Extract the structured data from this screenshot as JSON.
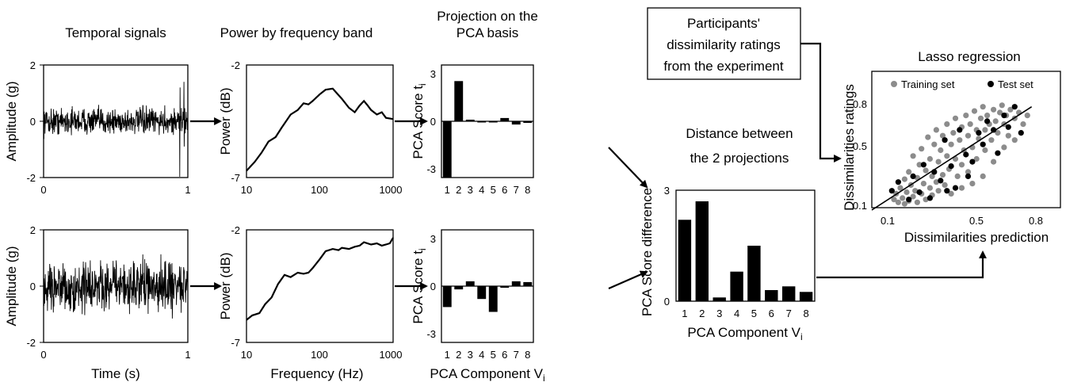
{
  "titles": {
    "temporal": "Temporal signals",
    "power": "Power by frequency band",
    "projection_1": "Projection on the",
    "projection_2": "PCA basis",
    "distance_1": "Distance between",
    "distance_2": "the 2 projections",
    "lasso": "Lasso regression",
    "ratings_box_1": "Participants'",
    "ratings_box_2": "dissimilarity ratings",
    "ratings_box_3": "from the experiment"
  },
  "axes": {
    "amplitude": "Amplitude (g)",
    "power": "Power (dB)",
    "pca_score": "PCA Score t",
    "pca_score_sub": "i",
    "pca_component": "PCA Component V",
    "pca_component_sub": "i",
    "time": "Time (s)",
    "frequency": "Frequency (Hz)",
    "score_diff": "PCA Score difference",
    "diss_ratings": "Dissimilarities ratings",
    "diss_prediction": "Dissimilarities prediction"
  },
  "ticks": {
    "amp": [
      "2",
      "0",
      "-2"
    ],
    "time": [
      "0",
      "1"
    ],
    "power": [
      "-2",
      "-7"
    ],
    "freq": [
      "10",
      "100",
      "1000"
    ],
    "pca": [
      "3",
      "0",
      "-3"
    ],
    "comp": [
      "1",
      "2",
      "3",
      "4",
      "5",
      "6",
      "7",
      "8"
    ],
    "diff": [
      "3",
      "0"
    ],
    "lasso_y": [
      "0.8",
      "0.5",
      "0.1"
    ],
    "lasso_x": [
      "0.1",
      "0.5",
      "0.8"
    ]
  },
  "legend": {
    "training": "Training set",
    "test": "Test set"
  },
  "colors": {
    "training": "#8c8c8c",
    "test": "#000000"
  },
  "chart_data": [
    {
      "type": "line",
      "xlim": [
        0,
        1
      ],
      "ylim": [
        -2,
        2
      ],
      "note_series": "random vibration signal, sample 1"
    },
    {
      "type": "line",
      "xscale": "log",
      "xlim": [
        10,
        1000
      ],
      "ylim": [
        -7,
        -2
      ],
      "x": [
        10,
        13,
        16,
        20,
        25,
        30,
        40,
        50,
        60,
        70,
        80,
        100,
        120,
        150,
        200,
        250,
        300,
        350,
        400,
        450,
        500,
        600,
        700,
        800,
        1000
      ],
      "y": [
        -6.7,
        -6.3,
        -5.9,
        -5.4,
        -5.2,
        -4.8,
        -4.2,
        -4.0,
        -3.7,
        -3.75,
        -3.6,
        -3.3,
        -3.1,
        -3.05,
        -3.5,
        -3.9,
        -4.1,
        -3.8,
        -3.6,
        -3.8,
        -4.0,
        -4.2,
        -4.1,
        -4.35,
        -4.4
      ]
    },
    {
      "type": "bar",
      "categories": [
        "1",
        "2",
        "3",
        "4",
        "5",
        "6",
        "7",
        "8"
      ],
      "values": [
        -3.5,
        2.5,
        0.1,
        0.0,
        0.0,
        0.2,
        -0.2,
        -0.1
      ],
      "ylim": [
        -3.5,
        3.5
      ]
    },
    {
      "type": "line",
      "xlim": [
        0,
        1
      ],
      "ylim": [
        -2,
        2
      ],
      "note_series": "random vibration signal, sample 2"
    },
    {
      "type": "line",
      "xscale": "log",
      "xlim": [
        10,
        1000
      ],
      "ylim": [
        -7,
        -2
      ],
      "x": [
        10,
        12,
        15,
        18,
        22,
        27,
        33,
        40,
        50,
        60,
        70,
        80,
        100,
        120,
        150,
        180,
        200,
        250,
        300,
        350,
        400,
        500,
        600,
        700,
        800,
        900,
        1000
      ],
      "y": [
        -6.0,
        -5.8,
        -5.7,
        -5.3,
        -5.0,
        -4.4,
        -4.0,
        -4.1,
        -3.9,
        -3.95,
        -3.9,
        -3.7,
        -3.3,
        -2.95,
        -2.85,
        -2.9,
        -2.8,
        -2.85,
        -2.75,
        -2.7,
        -2.55,
        -2.65,
        -2.6,
        -2.7,
        -2.65,
        -2.6,
        -2.35
      ]
    },
    {
      "type": "bar",
      "categories": [
        "1",
        "2",
        "3",
        "4",
        "5",
        "6",
        "7",
        "8"
      ],
      "values": [
        -1.3,
        -0.2,
        0.3,
        -0.8,
        -1.6,
        -0.1,
        0.3,
        0.25
      ],
      "ylim": [
        -3.5,
        3.5
      ]
    },
    {
      "type": "bar",
      "categories": [
        "1",
        "2",
        "3",
        "4",
        "5",
        "6",
        "7",
        "8"
      ],
      "values": [
        2.2,
        2.7,
        0.1,
        0.8,
        1.5,
        0.3,
        0.4,
        0.25
      ],
      "ylim": [
        0,
        3
      ]
    },
    {
      "type": "scatter",
      "xlim": [
        0.1,
        0.8
      ],
      "ylim": [
        0.1,
        0.8
      ],
      "series": [
        {
          "name": "Training set",
          "points": [
            [
              0.13,
              0.14
            ],
            [
              0.14,
              0.18
            ],
            [
              0.15,
              0.12
            ],
            [
              0.16,
              0.22
            ],
            [
              0.17,
              0.15
            ],
            [
              0.18,
              0.11
            ],
            [
              0.18,
              0.28
            ],
            [
              0.19,
              0.19
            ],
            [
              0.2,
              0.13
            ],
            [
              0.2,
              0.33
            ],
            [
              0.21,
              0.24
            ],
            [
              0.22,
              0.16
            ],
            [
              0.22,
              0.44
            ],
            [
              0.23,
              0.2
            ],
            [
              0.24,
              0.12
            ],
            [
              0.24,
              0.29
            ],
            [
              0.25,
              0.38
            ],
            [
              0.26,
              0.18
            ],
            [
              0.26,
              0.49
            ],
            [
              0.27,
              0.25
            ],
            [
              0.28,
              0.14
            ],
            [
              0.28,
              0.34
            ],
            [
              0.29,
              0.57
            ],
            [
              0.3,
              0.22
            ],
            [
              0.3,
              0.42
            ],
            [
              0.31,
              0.17
            ],
            [
              0.31,
              0.3
            ],
            [
              0.32,
              0.52
            ],
            [
              0.33,
              0.26
            ],
            [
              0.33,
              0.62
            ],
            [
              0.34,
              0.2
            ],
            [
              0.34,
              0.4
            ],
            [
              0.35,
              0.48
            ],
            [
              0.36,
              0.31
            ],
            [
              0.36,
              0.58
            ],
            [
              0.37,
              0.24
            ],
            [
              0.38,
              0.44
            ],
            [
              0.38,
              0.66
            ],
            [
              0.39,
              0.35
            ],
            [
              0.4,
              0.52
            ],
            [
              0.4,
              0.18
            ],
            [
              0.41,
              0.6
            ],
            [
              0.42,
              0.42
            ],
            [
              0.42,
              0.7
            ],
            [
              0.43,
              0.3
            ],
            [
              0.44,
              0.55
            ],
            [
              0.45,
              0.64
            ],
            [
              0.45,
              0.38
            ],
            [
              0.46,
              0.48
            ],
            [
              0.47,
              0.72
            ],
            [
              0.48,
              0.58
            ],
            [
              0.48,
              0.33
            ],
            [
              0.49,
              0.66
            ],
            [
              0.5,
              0.5
            ],
            [
              0.51,
              0.75
            ],
            [
              0.52,
              0.62
            ],
            [
              0.52,
              0.42
            ],
            [
              0.53,
              0.56
            ],
            [
              0.54,
              0.7
            ],
            [
              0.55,
              0.78
            ],
            [
              0.56,
              0.62
            ],
            [
              0.56,
              0.48
            ],
            [
              0.57,
              0.72
            ],
            [
              0.58,
              0.66
            ],
            [
              0.59,
              0.55
            ],
            [
              0.6,
              0.76
            ],
            [
              0.61,
              0.68
            ],
            [
              0.62,
              0.6
            ],
            [
              0.63,
              0.74
            ],
            [
              0.64,
              0.79
            ],
            [
              0.65,
              0.66
            ],
            [
              0.66,
              0.72
            ],
            [
              0.67,
              0.58
            ],
            [
              0.68,
              0.76
            ],
            [
              0.7,
              0.7
            ],
            [
              0.72,
              0.74
            ],
            [
              0.74,
              0.66
            ],
            [
              0.76,
              0.72
            ],
            [
              0.55,
              0.3
            ],
            [
              0.6,
              0.4
            ],
            [
              0.5,
              0.25
            ],
            [
              0.45,
              0.22
            ],
            [
              0.65,
              0.5
            ],
            [
              0.7,
              0.55
            ]
          ]
        },
        {
          "name": "Test set",
          "points": [
            [
              0.12,
              0.2
            ],
            [
              0.15,
              0.26
            ],
            [
              0.2,
              0.14
            ],
            [
              0.22,
              0.3
            ],
            [
              0.25,
              0.19
            ],
            [
              0.27,
              0.38
            ],
            [
              0.3,
              0.15
            ],
            [
              0.32,
              0.33
            ],
            [
              0.35,
              0.27
            ],
            [
              0.37,
              0.55
            ],
            [
              0.4,
              0.37
            ],
            [
              0.42,
              0.22
            ],
            [
              0.44,
              0.62
            ],
            [
              0.47,
              0.45
            ],
            [
              0.5,
              0.4
            ],
            [
              0.53,
              0.6
            ],
            [
              0.55,
              0.52
            ],
            [
              0.57,
              0.68
            ],
            [
              0.6,
              0.62
            ],
            [
              0.62,
              0.46
            ],
            [
              0.65,
              0.72
            ],
            [
              0.67,
              0.64
            ],
            [
              0.7,
              0.78
            ],
            [
              0.73,
              0.6
            ],
            [
              0.48,
              0.3
            ],
            [
              0.38,
              0.2
            ]
          ]
        }
      ]
    }
  ]
}
